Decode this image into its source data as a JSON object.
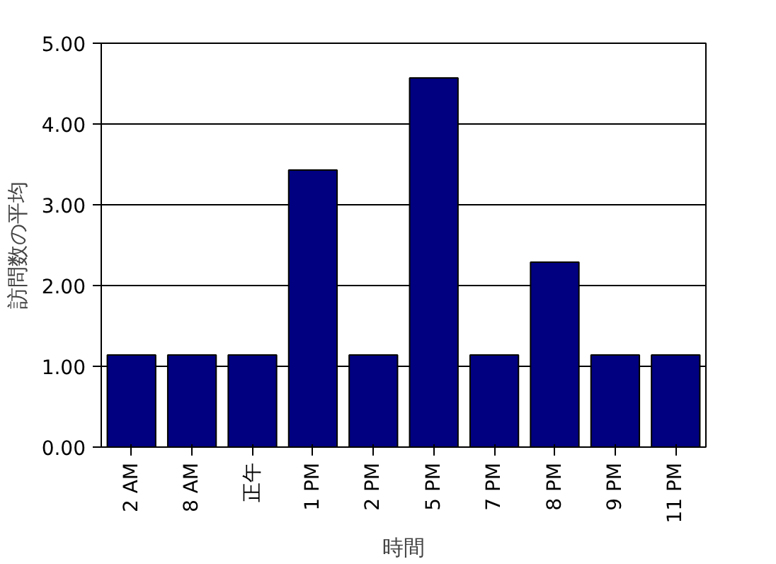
{
  "chart_data": {
    "type": "bar",
    "xlabel": "時間",
    "ylabel": "訪問数の平均",
    "categories": [
      "2 AM",
      "8 AM",
      "正午",
      "1 PM",
      "2 PM",
      "5 PM",
      "7 PM",
      "8 PM",
      "9 PM",
      "11 PM"
    ],
    "values": [
      1.14,
      1.14,
      1.14,
      3.43,
      1.14,
      4.57,
      1.14,
      2.29,
      1.14,
      1.14
    ],
    "color": "#000080",
    "ylim": [
      0,
      5
    ],
    "yticks": [
      {
        "value": 0,
        "label": "0.00"
      },
      {
        "value": 1,
        "label": "1.00"
      },
      {
        "value": 2,
        "label": "2.00"
      },
      {
        "value": 3,
        "label": "3.00"
      },
      {
        "value": 4,
        "label": "4.00"
      },
      {
        "value": 5,
        "label": "5.00"
      }
    ],
    "grid": "y"
  }
}
